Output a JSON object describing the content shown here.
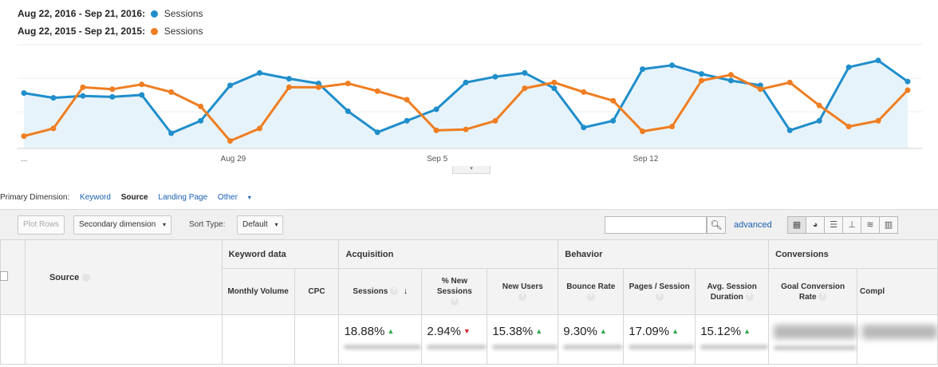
{
  "legend": [
    {
      "range": "Aug 22, 2016 - Sep 21, 2016:",
      "series": "Sessions",
      "color": "#1f8ecb"
    },
    {
      "range": "Aug 22, 2015 - Sep 21, 2015:",
      "series": "Sessions",
      "color": "#ef7e22"
    }
  ],
  "chart_data": {
    "type": "line",
    "x_tick_labels": [
      "...",
      "Aug 29",
      "Sep 5",
      "Sep 12"
    ],
    "series": [
      {
        "name": "Sessions",
        "period": "Aug 22, 2016 - Sep 21, 2016",
        "color": "#1f8ecb",
        "values": [
          57,
          52,
          54,
          53,
          55,
          15,
          28,
          65,
          78,
          72,
          67,
          38,
          16,
          28,
          40,
          68,
          74,
          78,
          62,
          21,
          28,
          82,
          86,
          77,
          70,
          65,
          18,
          28,
          84,
          91,
          69
        ]
      },
      {
        "name": "Sessions",
        "period": "Aug 22, 2015 - Sep 21, 2015",
        "color": "#ef7e22",
        "values": [
          12,
          20,
          63,
          61,
          66,
          58,
          43,
          7,
          20,
          63,
          63,
          67,
          59,
          50,
          18,
          19,
          28,
          62,
          68,
          58,
          49,
          17,
          22,
          70,
          76,
          61,
          68,
          44,
          22,
          28,
          60
        ]
      }
    ],
    "ylim": [
      0,
      100
    ],
    "grid": true,
    "area_fill_series": 0
  },
  "primary_dimension": {
    "label": "Primary Dimension:",
    "options": [
      {
        "label": "Keyword",
        "active": false
      },
      {
        "label": "Source",
        "active": true
      },
      {
        "label": "Landing Page",
        "active": false
      },
      {
        "label": "Other",
        "active": false
      }
    ]
  },
  "toolbar": {
    "plot_rows": "Plot Rows",
    "secondary_dimension": "Secondary dimension",
    "sort_type_label": "Sort Type:",
    "sort_type_value": "Default",
    "search_placeholder": "",
    "advanced": "advanced"
  },
  "table": {
    "source_header": "Source",
    "groups": {
      "keyword_data": "Keyword data",
      "acquisition": "Acquisition",
      "behavior": "Behavior",
      "conversions": "Conversions"
    },
    "columns": {
      "monthly_volume": "Monthly Volume",
      "cpc": "CPC",
      "sessions": "Sessions",
      "new_sessions": "% New Sessions",
      "new_users": "New Users",
      "bounce_rate": "Bounce Rate",
      "pages_session": "Pages / Session",
      "avg_session": "Avg. Session Duration",
      "goal_conversion": "Goal Conversion Rate",
      "completions": "Compl"
    },
    "row": {
      "sessions": "18.88%",
      "new_sessions": "2.94%",
      "new_users": "15.38%",
      "bounce_rate": "9.30%",
      "pages_session": "17.09%",
      "avg_session": "15.12%"
    }
  }
}
